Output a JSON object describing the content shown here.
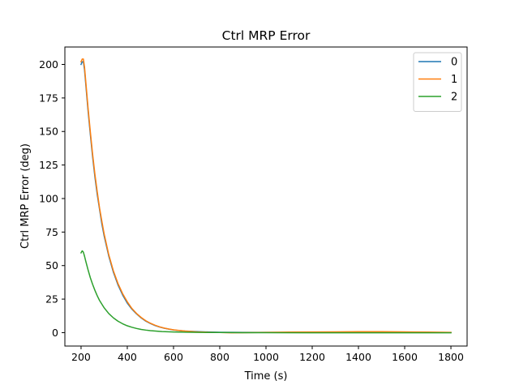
{
  "chart_data": {
    "type": "line",
    "title": "Ctrl MRP Error",
    "xlabel": "Time (s)",
    "ylabel": "Ctrl MRP Error (deg)",
    "xlim": [
      130,
      1870
    ],
    "ylim": [
      -10,
      213
    ],
    "xticks": [
      200,
      400,
      600,
      800,
      1000,
      1200,
      1400,
      1600,
      1800
    ],
    "yticks": [
      0,
      25,
      50,
      75,
      100,
      125,
      150,
      175,
      200
    ],
    "grid": false,
    "legend_placement": "top-right",
    "series": [
      {
        "name": "0",
        "color": "#1f77b4",
        "points": [
          [
            200,
            200
          ],
          [
            205,
            202
          ],
          [
            210,
            202
          ],
          [
            215,
            196
          ],
          [
            220,
            186
          ],
          [
            230,
            166
          ],
          [
            240,
            148
          ],
          [
            250,
            131
          ],
          [
            260,
            116
          ],
          [
            270,
            103
          ],
          [
            280,
            92
          ],
          [
            290,
            81
          ],
          [
            300,
            72
          ],
          [
            320,
            57
          ],
          [
            340,
            45
          ],
          [
            360,
            35.5
          ],
          [
            380,
            28
          ],
          [
            400,
            22
          ],
          [
            420,
            17.5
          ],
          [
            440,
            14
          ],
          [
            460,
            11
          ],
          [
            480,
            8.6
          ],
          [
            500,
            6.8
          ],
          [
            520,
            5.3
          ],
          [
            540,
            4.2
          ],
          [
            560,
            3.3
          ],
          [
            580,
            2.6
          ],
          [
            600,
            2.0
          ],
          [
            620,
            1.6
          ],
          [
            650,
            1.2
          ],
          [
            700,
            0.8
          ],
          [
            750,
            0.5
          ],
          [
            800,
            0.3
          ],
          [
            900,
            0.2
          ],
          [
            1000,
            0.2
          ],
          [
            1100,
            0.1
          ],
          [
            1200,
            0.2
          ],
          [
            1300,
            0.1
          ],
          [
            1400,
            0.2
          ],
          [
            1500,
            0.2
          ],
          [
            1600,
            0.2
          ],
          [
            1700,
            0.1
          ],
          [
            1800,
            0.1
          ]
        ]
      },
      {
        "name": "1",
        "color": "#ff7f0e",
        "points": [
          [
            200,
            202
          ],
          [
            205,
            204
          ],
          [
            210,
            204
          ],
          [
            215,
            198
          ],
          [
            220,
            188
          ],
          [
            230,
            168
          ],
          [
            240,
            150
          ],
          [
            250,
            133
          ],
          [
            260,
            118
          ],
          [
            270,
            105
          ],
          [
            280,
            93
          ],
          [
            290,
            83
          ],
          [
            300,
            73.5
          ],
          [
            320,
            58
          ],
          [
            340,
            46
          ],
          [
            360,
            36.5
          ],
          [
            380,
            29
          ],
          [
            400,
            23
          ],
          [
            420,
            18
          ],
          [
            440,
            14.3
          ],
          [
            460,
            11.3
          ],
          [
            480,
            8.9
          ],
          [
            500,
            7
          ],
          [
            520,
            5.5
          ],
          [
            540,
            4.3
          ],
          [
            560,
            3.4
          ],
          [
            580,
            2.7
          ],
          [
            600,
            2.1
          ],
          [
            620,
            1.7
          ],
          [
            650,
            1.2
          ],
          [
            700,
            0.6
          ],
          [
            750,
            0.3
          ],
          [
            800,
            0.1
          ],
          [
            850,
            -0.1
          ],
          [
            900,
            0.0
          ],
          [
            1000,
            0.2
          ],
          [
            1100,
            0.4
          ],
          [
            1200,
            0.5
          ],
          [
            1300,
            0.6
          ],
          [
            1400,
            0.7
          ],
          [
            1500,
            0.7
          ],
          [
            1600,
            0.6
          ],
          [
            1700,
            0.4
          ],
          [
            1800,
            0.2
          ]
        ]
      },
      {
        "name": "2",
        "color": "#2ca02c",
        "points": [
          [
            200,
            59.5
          ],
          [
            205,
            61
          ],
          [
            210,
            60
          ],
          [
            215,
            57
          ],
          [
            220,
            53.5
          ],
          [
            230,
            47
          ],
          [
            240,
            41
          ],
          [
            250,
            36
          ],
          [
            260,
            31.5
          ],
          [
            270,
            27.5
          ],
          [
            280,
            24
          ],
          [
            300,
            18.5
          ],
          [
            320,
            14.2
          ],
          [
            340,
            11
          ],
          [
            360,
            8.5
          ],
          [
            380,
            6.6
          ],
          [
            400,
            5.1
          ],
          [
            420,
            4.0
          ],
          [
            440,
            3.1
          ],
          [
            460,
            2.4
          ],
          [
            480,
            1.9
          ],
          [
            500,
            1.5
          ],
          [
            550,
            0.8
          ],
          [
            600,
            0.5
          ],
          [
            700,
            0.2
          ],
          [
            800,
            0.1
          ],
          [
            900,
            0.0
          ],
          [
            1000,
            0.0
          ],
          [
            1200,
            -0.1
          ],
          [
            1400,
            -0.1
          ],
          [
            1600,
            -0.1
          ],
          [
            1800,
            -0.1
          ]
        ]
      }
    ]
  }
}
